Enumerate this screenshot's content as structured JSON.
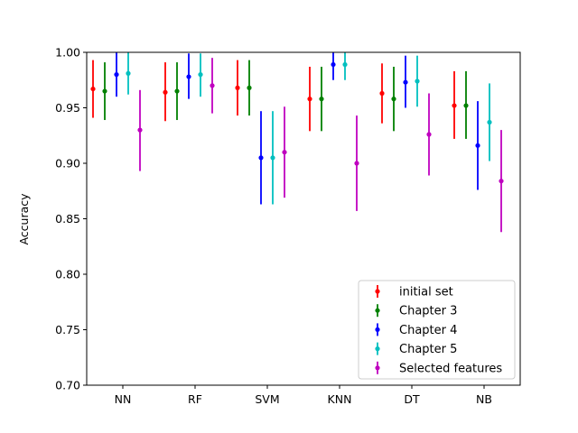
{
  "chart_data": {
    "type": "errorbar",
    "title": "",
    "xlabel": "",
    "ylabel": "Accuracy",
    "categories": [
      "NN",
      "RF",
      "SVM",
      "KNN",
      "DT",
      "NB"
    ],
    "ylim": [
      0.7,
      1.0
    ],
    "yticks": [
      "0.70",
      "0.75",
      "0.80",
      "0.85",
      "0.90",
      "0.95",
      "1.00"
    ],
    "grid": false,
    "legend_position": "lower-right",
    "series": [
      {
        "name": "initial set",
        "color": "#ff0000",
        "values": [
          0.967,
          0.964,
          0.968,
          0.958,
          0.963,
          0.952
        ],
        "lower": [
          0.941,
          0.938,
          0.943,
          0.929,
          0.936,
          0.922
        ],
        "upper": [
          0.993,
          0.991,
          0.993,
          0.987,
          0.99,
          0.983
        ]
      },
      {
        "name": "Chapter 3",
        "color": "#008000",
        "values": [
          0.965,
          0.965,
          0.968,
          0.958,
          0.958,
          0.952
        ],
        "lower": [
          0.939,
          0.939,
          0.943,
          0.929,
          0.929,
          0.922
        ],
        "upper": [
          0.991,
          0.991,
          0.993,
          0.987,
          0.987,
          0.983
        ]
      },
      {
        "name": "Chapter 4",
        "color": "#0000ff",
        "values": [
          0.98,
          0.978,
          0.905,
          0.989,
          0.973,
          0.916
        ],
        "lower": [
          0.96,
          0.958,
          0.863,
          0.975,
          0.95,
          0.876
        ],
        "upper": [
          1.0,
          0.999,
          0.947,
          1.0,
          0.997,
          0.956
        ]
      },
      {
        "name": "Chapter 5",
        "color": "#00bfbf",
        "values": [
          0.981,
          0.98,
          0.905,
          0.989,
          0.974,
          0.937
        ],
        "lower": [
          0.962,
          0.96,
          0.863,
          0.975,
          0.951,
          0.902
        ],
        "upper": [
          1.0,
          0.999,
          0.947,
          1.0,
          0.997,
          0.972
        ]
      },
      {
        "name": "Selected features",
        "color": "#bf00bf",
        "values": [
          0.93,
          0.97,
          0.91,
          0.9,
          0.926,
          0.884
        ],
        "lower": [
          0.893,
          0.945,
          0.869,
          0.857,
          0.889,
          0.838
        ],
        "upper": [
          0.966,
          0.995,
          0.951,
          0.943,
          0.963,
          0.93
        ]
      }
    ]
  }
}
